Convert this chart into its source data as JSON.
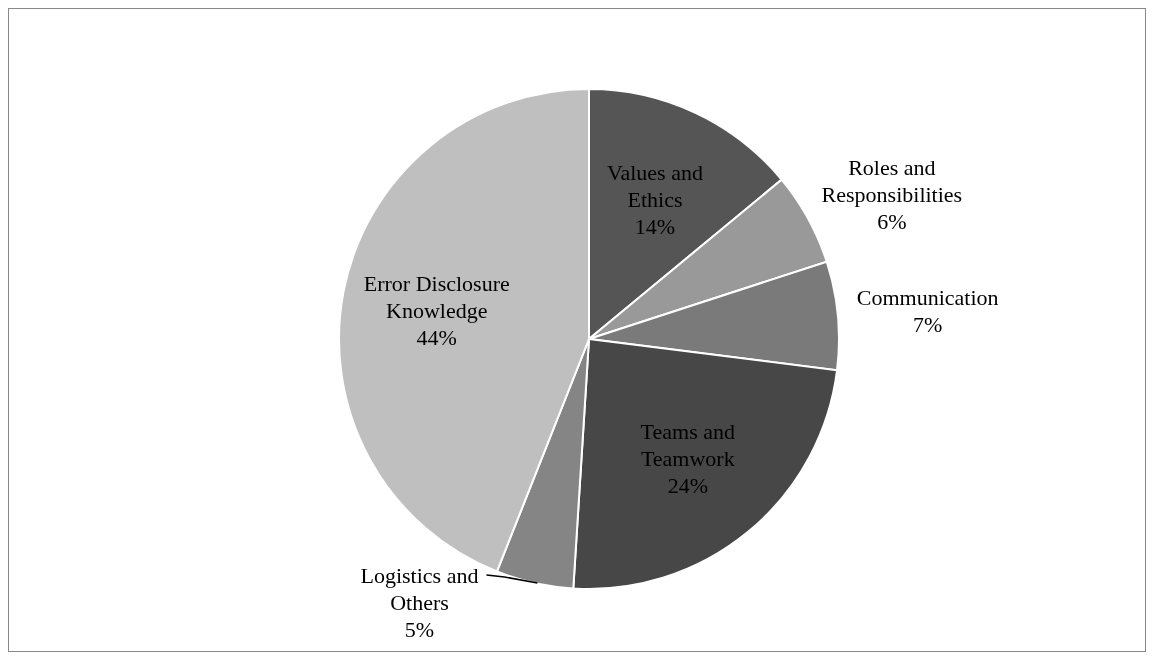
{
  "chart_data": {
    "type": "pie",
    "categories": [
      "Values and Ethics",
      "Roles and Responsibilities",
      "Communication",
      "Teams and Teamwork",
      "Logistics and Others",
      "Error Disclosure Knowledge"
    ],
    "values": [
      14,
      6,
      7,
      24,
      5,
      44
    ],
    "value_labels": [
      "14%",
      "6%",
      "7%",
      "24%",
      "5%",
      "44%"
    ],
    "colors": [
      "#555555",
      "#999999",
      "#7a7a7a",
      "#474747",
      "#858585",
      "#bfbfbf"
    ]
  }
}
